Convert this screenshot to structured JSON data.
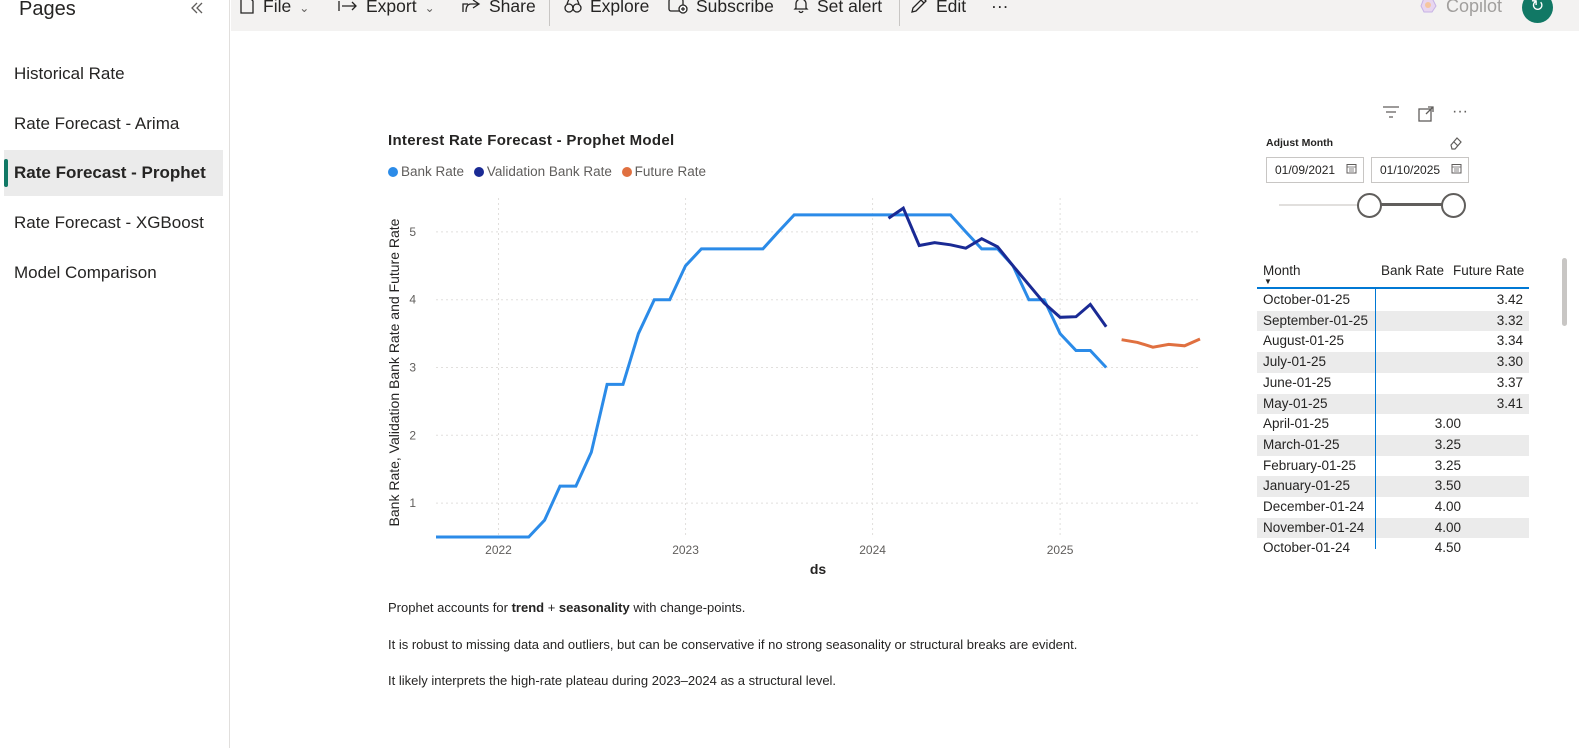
{
  "sidebar": {
    "title": "Pages",
    "items": [
      {
        "label": "Historical Rate"
      },
      {
        "label": "Rate Forecast - Arima"
      },
      {
        "label": "Rate Forecast - Prophet"
      },
      {
        "label": "Rate Forecast - XGBoost"
      },
      {
        "label": "Model Comparison"
      }
    ],
    "active_index": 2
  },
  "toolbar": {
    "file": "File",
    "export": "Export",
    "share": "Share",
    "explore": "Explore",
    "subscribe": "Subscribe",
    "set_alert": "Set alert",
    "edit": "Edit",
    "more": "···",
    "copilot": "Copilot"
  },
  "colors": {
    "bank_rate": "#2b8be8",
    "validation_bank_rate": "#1a2a94",
    "future_rate": "#e07040",
    "accent": "#117865"
  },
  "slicer": {
    "title": "Adjust Month",
    "start": "01/09/2021",
    "end": "01/10/2025"
  },
  "table": {
    "headers": [
      "Month",
      "Bank Rate",
      "Future Rate"
    ],
    "rows": [
      [
        "October-01-25",
        "",
        "3.42"
      ],
      [
        "September-01-25",
        "",
        "3.32"
      ],
      [
        "August-01-25",
        "",
        "3.34"
      ],
      [
        "July-01-25",
        "",
        "3.30"
      ],
      [
        "June-01-25",
        "",
        "3.37"
      ],
      [
        "May-01-25",
        "",
        "3.41"
      ],
      [
        "April-01-25",
        "3.00",
        ""
      ],
      [
        "March-01-25",
        "3.25",
        ""
      ],
      [
        "February-01-25",
        "3.25",
        ""
      ],
      [
        "January-01-25",
        "3.50",
        ""
      ],
      [
        "December-01-24",
        "4.00",
        ""
      ],
      [
        "November-01-24",
        "4.00",
        ""
      ],
      [
        "October-01-24",
        "4.50",
        ""
      ]
    ]
  },
  "text_box": {
    "line1_prefix": "Prophet accounts for ",
    "line1_bold1": "trend",
    "line1_plus": " + ",
    "line1_bold2": "seasonality",
    "line1_suffix": " with change-points.",
    "line2": "It is robust to missing data and outliers, but can be conservative if no strong seasonality or structural breaks are evident.",
    "line3": "It likely interprets the high-rate plateau during 2023–2024 as a structural level."
  },
  "chart_data": {
    "type": "line",
    "title": "Interest Rate Forecast - Prophet Model",
    "xlabel": "ds",
    "ylabel": "Bank Rate, Validation Bank Rate and Future Rate",
    "xlim": [
      "2021-09-01",
      "2025-10-01"
    ],
    "ylim": [
      0.5,
      5.5
    ],
    "x_ticks": [
      "2022",
      "2023",
      "2024",
      "2025"
    ],
    "y_ticks": [
      1,
      2,
      3,
      4,
      5
    ],
    "grid": true,
    "legend_position": "top-left",
    "series": [
      {
        "name": "Bank Rate",
        "points": [
          [
            "2021-09-01",
            0.5
          ],
          [
            "2021-10-01",
            0.5
          ],
          [
            "2021-11-01",
            0.5
          ],
          [
            "2021-12-01",
            0.5
          ],
          [
            "2022-01-01",
            0.5
          ],
          [
            "2022-02-01",
            0.5
          ],
          [
            "2022-03-01",
            0.5
          ],
          [
            "2022-04-01",
            0.75
          ],
          [
            "2022-05-01",
            1.25
          ],
          [
            "2022-06-01",
            1.25
          ],
          [
            "2022-07-01",
            1.75
          ],
          [
            "2022-08-01",
            2.75
          ],
          [
            "2022-09-01",
            2.75
          ],
          [
            "2022-10-01",
            3.5
          ],
          [
            "2022-11-01",
            4.0
          ],
          [
            "2022-12-01",
            4.0
          ],
          [
            "2023-01-01",
            4.5
          ],
          [
            "2023-02-01",
            4.75
          ],
          [
            "2023-03-01",
            4.75
          ],
          [
            "2023-04-01",
            4.75
          ],
          [
            "2023-05-01",
            4.75
          ],
          [
            "2023-06-01",
            4.75
          ],
          [
            "2023-07-01",
            5.0
          ],
          [
            "2023-08-01",
            5.25
          ],
          [
            "2023-09-01",
            5.25
          ],
          [
            "2023-10-01",
            5.25
          ],
          [
            "2023-11-01",
            5.25
          ],
          [
            "2023-12-01",
            5.25
          ],
          [
            "2024-01-01",
            5.25
          ],
          [
            "2024-02-01",
            5.25
          ],
          [
            "2024-03-01",
            5.25
          ],
          [
            "2024-04-01",
            5.25
          ],
          [
            "2024-05-01",
            5.25
          ],
          [
            "2024-06-01",
            5.25
          ],
          [
            "2024-07-01",
            5.0
          ],
          [
            "2024-08-01",
            4.75
          ],
          [
            "2024-09-01",
            4.75
          ],
          [
            "2024-10-01",
            4.5
          ],
          [
            "2024-11-01",
            4.0
          ],
          [
            "2024-12-01",
            4.0
          ],
          [
            "2025-01-01",
            3.5
          ],
          [
            "2025-02-01",
            3.25
          ],
          [
            "2025-03-01",
            3.25
          ],
          [
            "2025-04-01",
            3.0
          ]
        ]
      },
      {
        "name": "Validation Bank Rate",
        "points": [
          [
            "2024-02-01",
            5.2
          ],
          [
            "2024-03-01",
            5.35
          ],
          [
            "2024-04-01",
            4.8
          ],
          [
            "2024-05-01",
            4.84
          ],
          [
            "2024-06-01",
            4.81
          ],
          [
            "2024-07-01",
            4.76
          ],
          [
            "2024-08-01",
            4.9
          ],
          [
            "2024-09-01",
            4.78
          ],
          [
            "2024-10-01",
            4.5
          ],
          [
            "2024-11-01",
            4.22
          ],
          [
            "2024-12-01",
            3.95
          ],
          [
            "2025-01-01",
            3.74
          ],
          [
            "2025-02-01",
            3.75
          ],
          [
            "2025-03-01",
            3.93
          ],
          [
            "2025-04-01",
            3.6
          ]
        ]
      },
      {
        "name": "Future Rate",
        "points": [
          [
            "2025-05-01",
            3.41
          ],
          [
            "2025-06-01",
            3.37
          ],
          [
            "2025-07-01",
            3.3
          ],
          [
            "2025-08-01",
            3.34
          ],
          [
            "2025-09-01",
            3.32
          ],
          [
            "2025-10-01",
            3.42
          ]
        ]
      }
    ]
  }
}
